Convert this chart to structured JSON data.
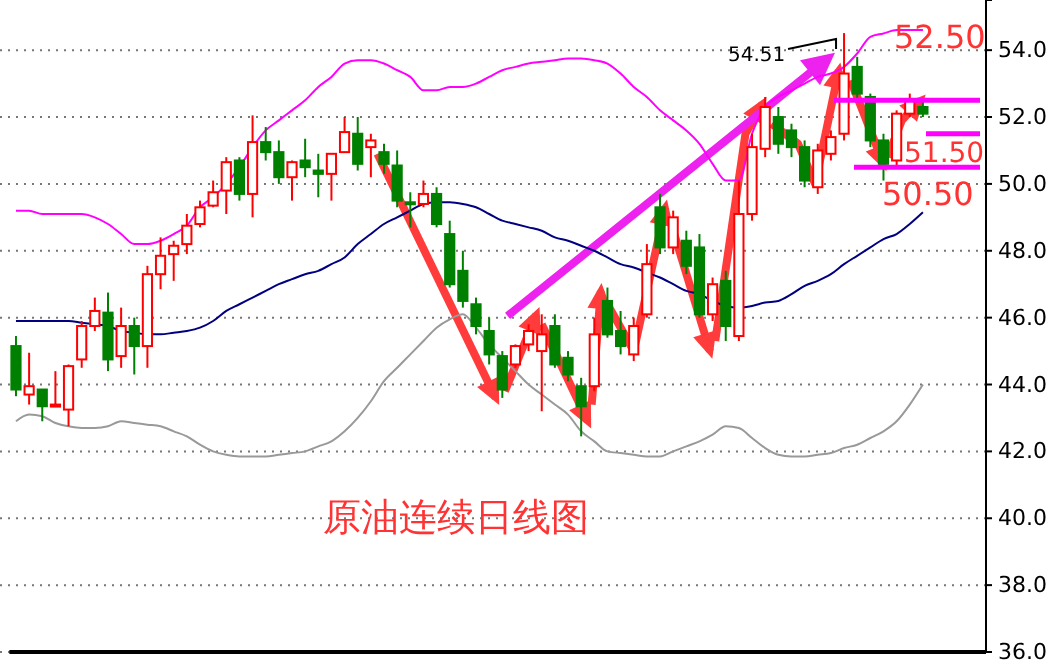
{
  "chart_data": {
    "type": "candlestick",
    "title": "原油连续日线图",
    "categories": [
      null,
      null,
      null,
      null,
      null,
      null,
      null,
      null,
      null,
      null,
      null,
      null,
      null,
      null,
      null,
      null,
      null,
      null,
      null,
      null,
      null,
      null,
      null,
      null,
      null,
      null,
      null,
      null,
      null,
      null,
      null,
      null,
      null,
      null,
      null,
      null,
      null,
      null,
      null,
      null,
      null,
      null,
      null,
      null,
      null,
      null,
      null,
      null,
      null,
      null,
      null,
      null,
      null,
      null,
      null,
      null,
      null,
      null,
      null,
      null,
      null,
      null,
      null,
      null,
      null,
      null,
      null,
      null,
      null,
      null,
      null,
      null,
      null,
      null
    ],
    "ohlc": [
      [
        45.15,
        45.45,
        43.65,
        43.85
      ],
      [
        43.7,
        44.95,
        43.4,
        43.95
      ],
      [
        43.85,
        43.85,
        42.9,
        43.35
      ],
      [
        43.35,
        44.4,
        43.35,
        43.4
      ],
      [
        43.25,
        44.6,
        42.75,
        44.55
      ],
      [
        44.75,
        45.9,
        44.5,
        45.75
      ],
      [
        45.75,
        46.6,
        45.6,
        46.2
      ],
      [
        46.15,
        46.75,
        44.4,
        44.75
      ],
      [
        44.85,
        46.3,
        44.5,
        45.75
      ],
      [
        45.75,
        46.0,
        44.3,
        45.15
      ],
      [
        45.15,
        47.55,
        44.5,
        47.3
      ],
      [
        47.3,
        48.4,
        46.85,
        47.85
      ],
      [
        47.9,
        48.3,
        47.1,
        48.15
      ],
      [
        48.2,
        49.1,
        47.9,
        48.75
      ],
      [
        48.8,
        49.5,
        48.7,
        49.3
      ],
      [
        49.35,
        50.1,
        49.3,
        49.75
      ],
      [
        49.8,
        50.8,
        49.1,
        50.65
      ],
      [
        50.7,
        50.8,
        49.5,
        49.7
      ],
      [
        49.7,
        52.05,
        49.0,
        51.25
      ],
      [
        51.25,
        51.7,
        50.7,
        50.95
      ],
      [
        50.95,
        51.3,
        50.0,
        50.2
      ],
      [
        50.2,
        50.7,
        49.5,
        50.65
      ],
      [
        50.7,
        51.35,
        50.2,
        50.5
      ],
      [
        50.4,
        50.9,
        49.6,
        50.3
      ],
      [
        50.3,
        50.9,
        49.5,
        50.9
      ],
      [
        50.95,
        52.0,
        50.95,
        51.55
      ],
      [
        51.5,
        52.0,
        50.4,
        50.6
      ],
      [
        51.1,
        51.5,
        50.2,
        51.3
      ],
      [
        50.95,
        51.2,
        50.3,
        50.6
      ],
      [
        50.55,
        51.0,
        49.3,
        49.5
      ],
      [
        49.45,
        49.75,
        48.7,
        49.4
      ],
      [
        49.4,
        50.1,
        49.3,
        49.7
      ],
      [
        49.7,
        49.9,
        48.7,
        48.8
      ],
      [
        48.5,
        48.9,
        46.9,
        47.0
      ],
      [
        47.4,
        48.0,
        46.3,
        46.5
      ],
      [
        46.4,
        46.6,
        45.5,
        45.75
      ],
      [
        45.6,
        46.0,
        44.6,
        44.9
      ],
      [
        44.85,
        45.0,
        43.6,
        43.85
      ],
      [
        44.6,
        45.2,
        44.5,
        45.15
      ],
      [
        45.2,
        45.8,
        45.0,
        45.6
      ],
      [
        45.0,
        46.1,
        43.2,
        45.5
      ],
      [
        45.75,
        46.1,
        44.5,
        44.6
      ],
      [
        44.8,
        45.0,
        44.1,
        44.3
      ],
      [
        43.95,
        44.2,
        42.45,
        43.35
      ],
      [
        43.95,
        46.0,
        43.8,
        45.5
      ],
      [
        46.5,
        46.9,
        45.4,
        45.5
      ],
      [
        45.6,
        46.2,
        44.9,
        45.15
      ],
      [
        44.9,
        46.0,
        44.7,
        45.75
      ],
      [
        46.1,
        48.2,
        46.0,
        47.6
      ],
      [
        49.3,
        49.7,
        47.9,
        48.1
      ],
      [
        48.1,
        49.2,
        47.9,
        49.0
      ],
      [
        48.3,
        48.6,
        47.3,
        47.55
      ],
      [
        48.1,
        48.5,
        46.0,
        46.1
      ],
      [
        46.1,
        47.2,
        45.9,
        47.0
      ],
      [
        47.1,
        47.4,
        45.3,
        45.75
      ],
      [
        45.45,
        50.1,
        45.3,
        49.1
      ],
      [
        49.1,
        51.5,
        48.9,
        51.1
      ],
      [
        51.05,
        52.6,
        50.8,
        52.3
      ],
      [
        52.0,
        52.3,
        50.9,
        51.2
      ],
      [
        51.6,
        51.8,
        50.8,
        51.1
      ],
      [
        51.1,
        51.3,
        49.9,
        50.1
      ],
      [
        49.9,
        51.2,
        49.7,
        51.0
      ],
      [
        50.9,
        51.6,
        50.7,
        51.4
      ],
      [
        51.5,
        54.51,
        51.3,
        53.3
      ],
      [
        53.5,
        53.8,
        52.5,
        52.7
      ],
      [
        52.6,
        52.7,
        51.1,
        51.3
      ],
      [
        51.3,
        51.5,
        50.1,
        50.6
      ],
      [
        50.7,
        52.2,
        50.5,
        52.1
      ],
      [
        52.1,
        52.7,
        52.0,
        52.5
      ],
      [
        52.3,
        52.5,
        52.0,
        52.1
      ],
      null,
      null,
      null,
      null
    ],
    "colors": [
      "#008000",
      "#ff0000",
      "#008000",
      "#ff0000",
      "#ff0000",
      "#ff0000",
      "#ff0000",
      "#008000",
      "#ff0000",
      "#008000",
      "#ff0000",
      "#ff0000",
      "#ff0000",
      "#ff0000",
      "#ff0000",
      "#ff0000",
      "#ff0000",
      "#008000",
      "#ff0000",
      "#008000",
      "#008000",
      "#ff0000",
      "#008000",
      "#008000",
      "#ff0000",
      "#ff0000",
      "#008000",
      "#ff0000",
      "#008000",
      "#008000",
      "#008000",
      "#ff0000",
      "#008000",
      "#008000",
      "#008000",
      "#008000",
      "#008000",
      "#008000",
      "#ff0000",
      "#ff0000",
      "#ff0000",
      "#008000",
      "#008000",
      "#008000",
      "#ff0000",
      "#008000",
      "#008000",
      "#ff0000",
      "#ff0000",
      "#008000",
      "#ff0000",
      "#008000",
      "#008000",
      "#ff0000",
      "#008000",
      "#ff0000",
      "#ff0000",
      "#ff0000",
      "#008000",
      "#008000",
      "#008000",
      "#ff0000",
      "#ff0000",
      "#ff0000",
      "#008000",
      "#008000",
      "#008000",
      "#ff0000",
      "#ff0000",
      "#008000",
      null,
      null,
      null,
      null
    ],
    "series": [
      {
        "type": "line",
        "color": "#ff00ff",
        "values": [
          49.2,
          49.2,
          49.1,
          49.1,
          49.1,
          49.1,
          49.0,
          48.8,
          48.5,
          48.2,
          48.2,
          48.3,
          48.5,
          48.75,
          49.3,
          49.6,
          50.0,
          50.5,
          51.1,
          51.6,
          51.9,
          52.2,
          52.5,
          52.9,
          53.2,
          53.6,
          53.7,
          53.7,
          53.6,
          53.4,
          53.2,
          52.8,
          52.8,
          52.9,
          52.9,
          53.0,
          53.2,
          53.4,
          53.5,
          53.6,
          53.65,
          53.7,
          53.75,
          53.75,
          53.7,
          53.6,
          53.3,
          52.9,
          52.6,
          52.2,
          51.9,
          51.6,
          51.2,
          50.6,
          50.1,
          50.1,
          51.5,
          52.3,
          52.6,
          52.8,
          53.0,
          53.2,
          53.3,
          53.5,
          53.9,
          54.4,
          54.5,
          54.6,
          54.6,
          54.6,
          null,
          null,
          null,
          null
        ]
      },
      {
        "type": "line",
        "color": "#000080",
        "values": [
          45.9,
          45.9,
          45.9,
          45.9,
          45.9,
          45.85,
          45.8,
          45.75,
          45.6,
          45.55,
          45.5,
          45.5,
          45.55,
          45.6,
          45.7,
          45.9,
          46.2,
          46.4,
          46.6,
          46.8,
          47.0,
          47.15,
          47.3,
          47.4,
          47.6,
          47.8,
          48.2,
          48.5,
          48.8,
          49.0,
          49.2,
          49.4,
          49.45,
          49.45,
          49.4,
          49.3,
          49.1,
          48.9,
          48.8,
          48.7,
          48.6,
          48.4,
          48.3,
          48.15,
          48.0,
          47.8,
          47.6,
          47.5,
          47.35,
          47.2,
          47.0,
          46.8,
          46.7,
          46.5,
          46.35,
          46.3,
          46.35,
          46.45,
          46.5,
          46.7,
          46.95,
          47.1,
          47.3,
          47.6,
          47.85,
          48.1,
          48.35,
          48.5,
          48.8,
          49.15,
          null,
          null,
          null,
          null
        ]
      },
      {
        "type": "line",
        "color": "#999999",
        "values": [
          42.9,
          43.1,
          43.05,
          42.85,
          42.75,
          42.7,
          42.7,
          42.75,
          42.9,
          42.85,
          42.8,
          42.75,
          42.6,
          42.45,
          42.2,
          42.0,
          41.9,
          41.85,
          41.85,
          41.85,
          41.9,
          41.95,
          42.0,
          42.15,
          42.3,
          42.6,
          43.0,
          43.5,
          44.1,
          44.5,
          44.9,
          45.3,
          45.7,
          45.95,
          46.1,
          45.7,
          45.2,
          44.8,
          44.4,
          44.0,
          43.7,
          43.4,
          43.1,
          42.6,
          42.3,
          42.0,
          41.95,
          41.9,
          41.85,
          41.85,
          42.0,
          42.15,
          42.3,
          42.5,
          42.75,
          42.7,
          42.4,
          42.1,
          41.9,
          41.85,
          41.85,
          41.9,
          41.95,
          42.1,
          42.2,
          42.4,
          42.6,
          42.9,
          43.4,
          44.0,
          null,
          null,
          null,
          null
        ]
      }
    ],
    "ylim": [
      36,
      55.5
    ],
    "yticks": [
      {
        "value": 36,
        "label": "36.0"
      },
      {
        "value": 38,
        "label": "38.0"
      },
      {
        "value": 40,
        "label": "40.0"
      },
      {
        "value": 42,
        "label": "42.0"
      },
      {
        "value": 44,
        "label": "44.0"
      },
      {
        "value": 46,
        "label": "46.0"
      },
      {
        "value": 48,
        "label": "48.0"
      },
      {
        "value": 50,
        "label": "50.0"
      },
      {
        "value": 52,
        "label": "52.0"
      },
      {
        "value": 54,
        "label": "54.0"
      }
    ],
    "grid": "y",
    "tick_labels": "y",
    "ref_lines": [
      {
        "axis": "y",
        "value": 52.5,
        "label": "52.50",
        "color": "#ff00ff"
      },
      {
        "axis": "y",
        "value": 51.5,
        "label": "51.50",
        "color": "#ff00ff"
      },
      {
        "axis": "y",
        "value": 50.5,
        "label": "50.50",
        "color": "#ff00ff"
      }
    ],
    "annotations": [
      "54.51"
    ]
  }
}
